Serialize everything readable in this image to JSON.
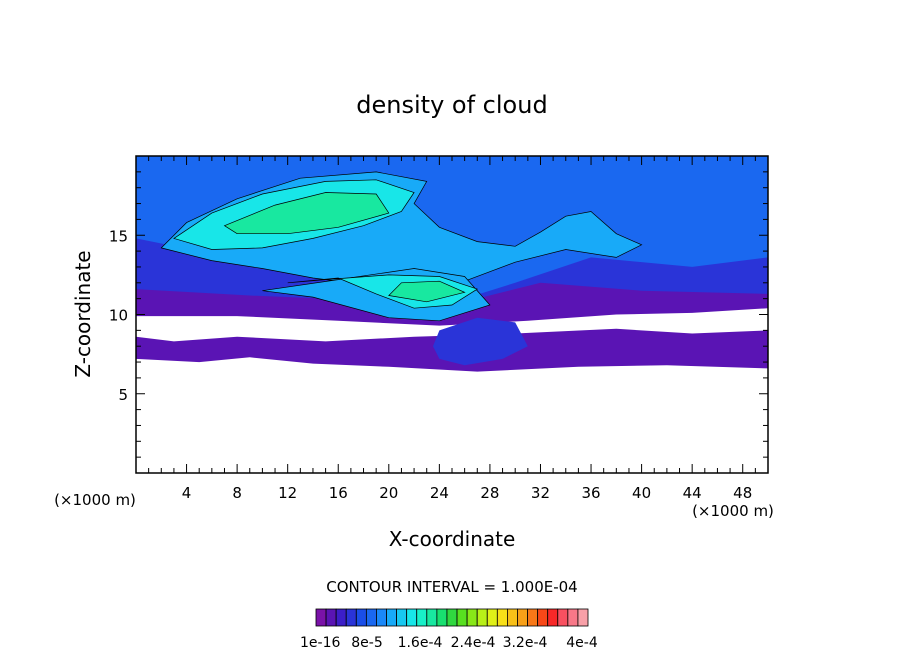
{
  "chart_data": {
    "type": "heatmap",
    "title": "density of cloud",
    "xlabel": "X-coordinate",
    "ylabel": "Z-coordinate",
    "x_unit_label": "(×1000 m)",
    "z_unit_label": "(×1000 m)",
    "xlim": [
      0,
      50
    ],
    "ylim": [
      0,
      20
    ],
    "x_ticks": [
      4,
      8,
      12,
      16,
      20,
      24,
      28,
      32,
      36,
      40,
      44,
      48
    ],
    "y_ticks": [
      5,
      10,
      15
    ],
    "contour_interval_text": "CONTOUR INTERVAL = 1.000E-04",
    "colorbar": {
      "labels": [
        "1e-16",
        "8e-5",
        "1.6e-4",
        "2.4e-4",
        "3.2e-4",
        "4e-4"
      ],
      "colors": [
        "#7a12a8",
        "#5a14b4",
        "#3c1ec8",
        "#2a34d8",
        "#1a4ee8",
        "#1a68f0",
        "#1a88f8",
        "#18aaf8",
        "#18c8f0",
        "#18e6e8",
        "#18f0c8",
        "#18e8a0",
        "#18e070",
        "#30d840",
        "#58e020",
        "#88e818",
        "#b8f018",
        "#e0f018",
        "#f8e018",
        "#f8c018",
        "#f8a018",
        "#f87818",
        "#f84818",
        "#f82828",
        "#f85060",
        "#f87888",
        "#f8a0a8"
      ]
    },
    "bands": [
      {
        "level": 1,
        "regions": [
          [
            [
              0,
              7.2
            ],
            [
              5,
              7.0
            ],
            [
              9,
              7.3
            ],
            [
              14,
              6.9
            ],
            [
              20,
              6.7
            ],
            [
              27,
              6.4
            ],
            [
              35,
              6.7
            ],
            [
              42,
              6.8
            ],
            [
              50,
              6.6
            ],
            [
              50,
              9
            ],
            [
              44,
              8.8
            ],
            [
              38,
              9.1
            ],
            [
              30,
              8.8
            ],
            [
              22,
              8.6
            ],
            [
              15,
              8.3
            ],
            [
              8,
              8.6
            ],
            [
              3,
              8.3
            ],
            [
              0,
              8.6
            ]
          ],
          [
            [
              0,
              9.9
            ],
            [
              8,
              9.9
            ],
            [
              16,
              9.6
            ],
            [
              24,
              9.3
            ],
            [
              31,
              9.6
            ],
            [
              38,
              10.0
            ],
            [
              44,
              10.1
            ],
            [
              50,
              10.4
            ],
            [
              50,
              15
            ],
            [
              0,
              15
            ]
          ]
        ]
      },
      {
        "level": 3,
        "regions": [
          [
            [
              0,
              11.6
            ],
            [
              9,
              11.2
            ],
            [
              18,
              10.9
            ],
            [
              26,
              10.8
            ],
            [
              32,
              12.0
            ],
            [
              40,
              11.5
            ],
            [
              50,
              11.3
            ],
            [
              50,
              20
            ],
            [
              0,
              20
            ]
          ],
          [
            [
              24,
              7.2
            ],
            [
              26,
              6.8
            ],
            [
              29,
              7.2
            ],
            [
              31,
              8.0
            ],
            [
              30,
              9.5
            ],
            [
              27,
              9.8
            ],
            [
              24,
              9.0
            ],
            [
              23.5,
              8.0
            ]
          ]
        ]
      },
      {
        "level": 5,
        "regions": [
          [
            [
              0,
              14.8
            ],
            [
              5,
              14.0
            ],
            [
              12,
              12.6
            ],
            [
              20,
              11.6
            ],
            [
              26,
              11.0
            ],
            [
              30,
              12.0
            ],
            [
              36,
              13.6
            ],
            [
              44,
              13.0
            ],
            [
              50,
              13.6
            ],
            [
              50,
              20
            ],
            [
              0,
              20
            ]
          ]
        ]
      },
      {
        "level": 7,
        "regions": [
          [
            [
              2,
              14.2
            ],
            [
              4,
              15.8
            ],
            [
              8,
              17.3
            ],
            [
              13,
              18.6
            ],
            [
              19,
              19.0
            ],
            [
              23,
              18.4
            ],
            [
              22,
              17.0
            ],
            [
              24,
              15.5
            ],
            [
              27,
              14.6
            ],
            [
              30,
              14.3
            ],
            [
              32,
              15.2
            ],
            [
              34,
              16.2
            ],
            [
              36,
              16.5
            ],
            [
              38,
              15.1
            ],
            [
              40,
              14.4
            ],
            [
              38,
              13.6
            ],
            [
              34,
              14.1
            ],
            [
              30,
              13.3
            ],
            [
              26,
              12.1
            ],
            [
              22,
              11.7
            ],
            [
              18,
              11.9
            ],
            [
              14,
              12.3
            ],
            [
              10,
              12.9
            ],
            [
              6,
              13.4
            ]
          ],
          [
            [
              10,
              11.5
            ],
            [
              14,
              11.1
            ],
            [
              20,
              9.8
            ],
            [
              24,
              9.6
            ],
            [
              28,
              10.6
            ],
            [
              26,
              12.4
            ],
            [
              22,
              12.9
            ],
            [
              16,
              12.2
            ]
          ]
        ]
      },
      {
        "level": 9,
        "regions": [
          [
            [
              3,
              14.8
            ],
            [
              6,
              16.4
            ],
            [
              10,
              17.6
            ],
            [
              15,
              18.4
            ],
            [
              19,
              18.5
            ],
            [
              22,
              17.7
            ],
            [
              21,
              16.5
            ],
            [
              18,
              15.6
            ],
            [
              14,
              14.8
            ],
            [
              10,
              14.2
            ],
            [
              6,
              14.1
            ]
          ],
          [
            [
              12,
              12.0
            ],
            [
              16,
              12.3
            ],
            [
              19,
              11.3
            ],
            [
              22,
              10.4
            ],
            [
              25,
              10.6
            ],
            [
              27,
              11.6
            ],
            [
              24,
              12.4
            ],
            [
              20,
              12.5
            ],
            [
              15,
              12.2
            ]
          ]
        ]
      },
      {
        "level": 11,
        "regions": [
          [
            [
              7,
              15.6
            ],
            [
              11,
              16.9
            ],
            [
              15,
              17.7
            ],
            [
              19,
              17.6
            ],
            [
              20,
              16.4
            ],
            [
              16,
              15.5
            ],
            [
              12,
              15.1
            ],
            [
              8,
              15.1
            ]
          ],
          [
            [
              20,
              11.2
            ],
            [
              23,
              10.8
            ],
            [
              26,
              11.4
            ],
            [
              24,
              12.1
            ],
            [
              21,
              12.0
            ]
          ]
        ]
      }
    ],
    "no_data_marks": [
      "xlabel_unit_left_only"
    ]
  }
}
